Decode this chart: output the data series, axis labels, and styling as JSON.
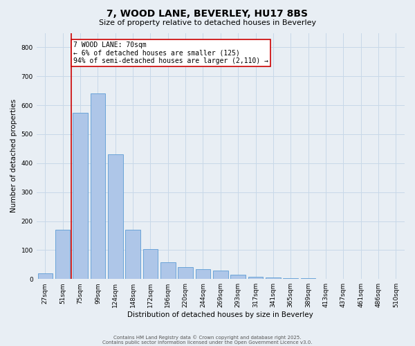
{
  "title1": "7, WOOD LANE, BEVERLEY, HU17 8BS",
  "title2": "Size of property relative to detached houses in Beverley",
  "xlabel": "Distribution of detached houses by size in Beverley",
  "ylabel": "Number of detached properties",
  "categories": [
    "27sqm",
    "51sqm",
    "75sqm",
    "99sqm",
    "124sqm",
    "148sqm",
    "172sqm",
    "196sqm",
    "220sqm",
    "244sqm",
    "269sqm",
    "293sqm",
    "317sqm",
    "341sqm",
    "365sqm",
    "389sqm",
    "413sqm",
    "437sqm",
    "461sqm",
    "486sqm",
    "510sqm"
  ],
  "values": [
    20,
    170,
    575,
    640,
    430,
    170,
    103,
    57,
    42,
    33,
    30,
    15,
    8,
    5,
    3,
    2,
    1,
    1,
    0,
    0,
    0
  ],
  "bar_color": "#aec6e8",
  "bar_edge_color": "#5b9bd5",
  "bar_width": 0.85,
  "ylim": [
    0,
    850
  ],
  "yticks": [
    0,
    100,
    200,
    300,
    400,
    500,
    600,
    700,
    800
  ],
  "red_line_x": 1.5,
  "annotation_title": "7 WOOD LANE: 70sqm",
  "annotation_line1": "← 6% of detached houses are smaller (125)",
  "annotation_line2": "94% of semi-detached houses are larger (2,110) →",
  "annotation_box_color": "#ffffff",
  "annotation_box_edge": "#cc0000",
  "red_line_color": "#cc0000",
  "grid_color": "#c8d8e8",
  "background_color": "#e8eef4",
  "footer1": "Contains HM Land Registry data © Crown copyright and database right 2025.",
  "footer2": "Contains public sector information licensed under the Open Government Licence v3.0.",
  "title1_fontsize": 10,
  "title2_fontsize": 8,
  "xlabel_fontsize": 7.5,
  "ylabel_fontsize": 7.5,
  "tick_fontsize": 6.5,
  "footer_fontsize": 5,
  "annotation_fontsize": 7
}
